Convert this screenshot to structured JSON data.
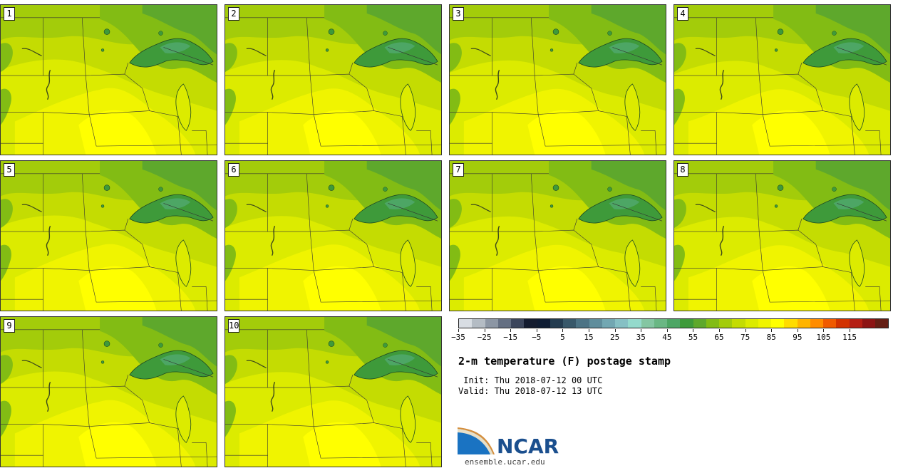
{
  "panels": [
    {
      "label": "1"
    },
    {
      "label": "2"
    },
    {
      "label": "3"
    },
    {
      "label": "4"
    },
    {
      "label": "5"
    },
    {
      "label": "6"
    },
    {
      "label": "7"
    },
    {
      "label": "8"
    },
    {
      "label": "9"
    },
    {
      "label": "10"
    }
  ],
  "colorbar": {
    "colors": [
      "#d8dde3",
      "#b4bcc4",
      "#8c96a4",
      "#646f82",
      "#3c465c",
      "#141c30",
      "#0f1c33",
      "#243c50",
      "#38586a",
      "#4c7385",
      "#5f8d9c",
      "#72a7b2",
      "#86c0c4",
      "#94dacc",
      "#84c6a2",
      "#6ab784",
      "#4da665",
      "#3e9a3a",
      "#5ea82c",
      "#82bc14",
      "#a3cc0a",
      "#c4dc02",
      "#dceb00",
      "#f0f400",
      "#ffff00",
      "#ffdc00",
      "#ffb400",
      "#ff8c00",
      "#f05a00",
      "#d23200",
      "#b41e14",
      "#8c1414",
      "#641e14"
    ],
    "ticks": [
      "−35",
      "−25",
      "−15",
      "−5",
      "5",
      "15",
      "25",
      "35",
      "45",
      "55",
      "65",
      "75",
      "85",
      "95",
      "105",
      "115"
    ]
  },
  "title": "2-m temperature (F) postage stamp",
  "init": " Init: Thu 2018-07-12 00 UTC",
  "valid": "Valid: Thu 2018-07-12 13 UTC",
  "logo": {
    "name": "NCAR",
    "url": "ensemble.ucar.edu"
  }
}
